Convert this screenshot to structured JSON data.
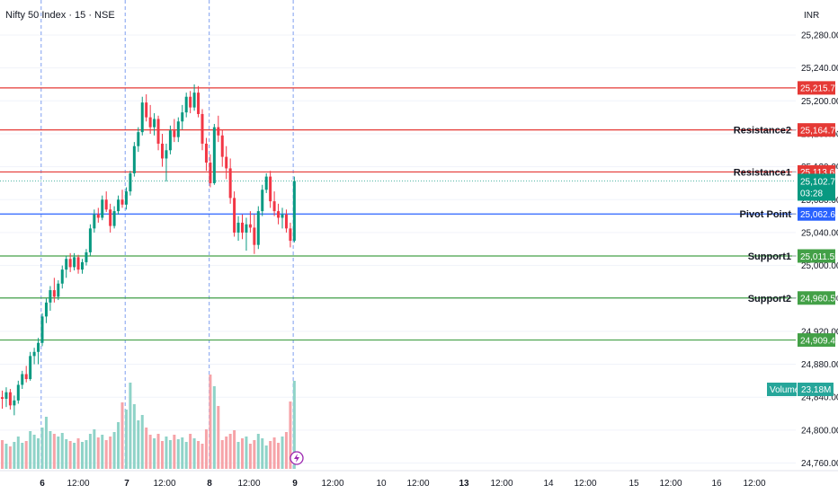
{
  "header": {
    "symbol_title": "Nifty 50 Index · 15 · NSE",
    "currency": "INR"
  },
  "price_axis": {
    "ticks": [
      25280,
      25240,
      25200,
      25160,
      25120,
      25080,
      25040,
      25000,
      24960,
      24920,
      24880,
      24840,
      24800,
      24760
    ]
  },
  "time_axis": {
    "ticks": [
      {
        "label": "6",
        "bold": true
      },
      {
        "label": "12:00",
        "bold": false
      },
      {
        "label": "7",
        "bold": true
      },
      {
        "label": "12:00",
        "bold": false
      },
      {
        "label": "8",
        "bold": true
      },
      {
        "label": "12:00",
        "bold": false
      },
      {
        "label": "9",
        "bold": true
      },
      {
        "label": "12:00",
        "bold": false
      },
      {
        "label": "10",
        "bold": false
      },
      {
        "label": "12:00",
        "bold": false
      },
      {
        "label": "13",
        "bold": true
      },
      {
        "label": "12:00",
        "bold": false
      },
      {
        "label": "14",
        "bold": false
      },
      {
        "label": "12:00",
        "bold": false
      },
      {
        "label": "15",
        "bold": false
      },
      {
        "label": "12:00",
        "bold": false
      },
      {
        "label": "16",
        "bold": false
      },
      {
        "label": "12:00",
        "bold": false
      }
    ]
  },
  "levels": [
    {
      "name": "",
      "value": 25215.75,
      "value_label": "25,215.75",
      "color": "#e53935"
    },
    {
      "name": "Resistance2",
      "value": 25164.7,
      "value_label": "25,164.70",
      "color": "#e53935"
    },
    {
      "name": "Resistance1",
      "value": 25113.65,
      "value_label": "25,113.65",
      "color": "#e53935"
    },
    {
      "name": "Pivot Point",
      "value": 25062.6,
      "value_label": "25,062.60",
      "color": "#2962ff"
    },
    {
      "name": "Support1",
      "value": 25011.55,
      "value_label": "25,011.55",
      "color": "#43a047"
    },
    {
      "name": "Support2",
      "value": 24960.5,
      "value_label": "24,960.50",
      "color": "#43a047"
    },
    {
      "name": "",
      "value": 24909.45,
      "value_label": "24,909.45",
      "color": "#43a047"
    }
  ],
  "last_price": {
    "value": 25102.7,
    "value_label": "25,102.70",
    "countdown": "03:28",
    "color": "#089981"
  },
  "volume": {
    "label": "Volume",
    "value": "23.18M",
    "color": "#26a69a"
  },
  "colors": {
    "up": "#089981",
    "down": "#f23645",
    "vol_up": "#8fd3c8",
    "vol_down": "#f6a3a8",
    "grid": "#f0f3fa",
    "session": "#7f9ff0"
  },
  "chart_data": {
    "type": "candlestick",
    "interval": "15",
    "ylim": [
      24750,
      25300
    ],
    "candles": [
      [
        24840,
        24848,
        24826,
        24838
      ],
      [
        24838,
        24852,
        24828,
        24846
      ],
      [
        24846,
        24850,
        24825,
        24830
      ],
      [
        24830,
        24842,
        24818,
        24836
      ],
      [
        24836,
        24860,
        24832,
        24855
      ],
      [
        24855,
        24872,
        24850,
        24868
      ],
      [
        24868,
        24878,
        24858,
        24862
      ],
      [
        24862,
        24895,
        24860,
        24890
      ],
      [
        24890,
        24900,
        24880,
        24895
      ],
      [
        24895,
        24912,
        24880,
        24906
      ],
      [
        24906,
        24942,
        24902,
        24938
      ],
      [
        24938,
        24960,
        24930,
        24955
      ],
      [
        24955,
        24975,
        24945,
        24970
      ],
      [
        24970,
        24985,
        24955,
        24962
      ],
      [
        24962,
        24982,
        24958,
        24978
      ],
      [
        24978,
        25000,
        24972,
        24995
      ],
      [
        24995,
        25012,
        24985,
        25008
      ],
      [
        25008,
        25015,
        24992,
        24998
      ],
      [
        24998,
        25015,
        24994,
        25010
      ],
      [
        25010,
        25013,
        24990,
        24995
      ],
      [
        24995,
        25008,
        24990,
        25004
      ],
      [
        25004,
        25020,
        25000,
        25016
      ],
      [
        25016,
        25050,
        25012,
        25045
      ],
      [
        25045,
        25068,
        25040,
        25062
      ],
      [
        25062,
        25070,
        25052,
        25058
      ],
      [
        25058,
        25085,
        25055,
        25080
      ],
      [
        25080,
        25090,
        25065,
        25068
      ],
      [
        25068,
        25075,
        25040,
        25048
      ],
      [
        25048,
        25072,
        25045,
        25066
      ],
      [
        25066,
        25085,
        25062,
        25080
      ],
      [
        25080,
        25092,
        25070,
        25074
      ],
      [
        25074,
        25095,
        25068,
        25090
      ],
      [
        25090,
        25115,
        25085,
        25112
      ],
      [
        25112,
        25150,
        25108,
        25145
      ],
      [
        25145,
        25168,
        25138,
        25162
      ],
      [
        25162,
        25205,
        25158,
        25198
      ],
      [
        25198,
        25208,
        25175,
        25180
      ],
      [
        25180,
        25195,
        25160,
        25168
      ],
      [
        25168,
        25185,
        25158,
        25178
      ],
      [
        25178,
        25182,
        25140,
        25148
      ],
      [
        25148,
        25160,
        25120,
        25130
      ],
      [
        25130,
        25148,
        25102,
        25140
      ],
      [
        25140,
        25170,
        25135,
        25164
      ],
      [
        25164,
        25178,
        25150,
        25156
      ],
      [
        25156,
        25180,
        25150,
        25175
      ],
      [
        25175,
        25195,
        25165,
        25186
      ],
      [
        25186,
        25210,
        25180,
        25205
      ],
      [
        25205,
        25212,
        25185,
        25192
      ],
      [
        25192,
        25220,
        25188,
        25210
      ],
      [
        25210,
        25218,
        25180,
        25184
      ],
      [
        25184,
        25190,
        25140,
        25148
      ],
      [
        25148,
        25155,
        25115,
        25125
      ],
      [
        25125,
        25135,
        25095,
        25100
      ],
      [
        25100,
        25172,
        25098,
        25168
      ],
      [
        25168,
        25182,
        25150,
        25158
      ],
      [
        25158,
        25165,
        25120,
        25132
      ],
      [
        25132,
        25145,
        25105,
        25118
      ],
      [
        25118,
        25130,
        25075,
        25082
      ],
      [
        25082,
        25090,
        25035,
        25040
      ],
      [
        25040,
        25060,
        25030,
        25052
      ],
      [
        25052,
        25062,
        25032,
        25040
      ],
      [
        25040,
        25058,
        25018,
        25050
      ],
      [
        25050,
        25066,
        25040,
        25046
      ],
      [
        25046,
        25062,
        25014,
        25025
      ],
      [
        25025,
        25072,
        25020,
        25066
      ],
      [
        25066,
        25098,
        25060,
        25092
      ],
      [
        25092,
        25112,
        25088,
        25108
      ],
      [
        25108,
        25115,
        25070,
        25078
      ],
      [
        25078,
        25090,
        25060,
        25066
      ],
      [
        25066,
        25075,
        25050,
        25058
      ],
      [
        25058,
        25070,
        25045,
        25062
      ],
      [
        25062,
        25068,
        25040,
        25045
      ],
      [
        25045,
        25052,
        25022,
        25030
      ],
      [
        25030,
        25108,
        25028,
        25102.7
      ]
    ],
    "volumes": [
      3.2,
      2.8,
      2.5,
      3.0,
      3.6,
      2.9,
      3.1,
      4.2,
      3.8,
      3.4,
      4.6,
      5.8,
      4.2,
      3.9,
      3.6,
      4.0,
      3.3,
      3.1,
      2.9,
      3.4,
      3.0,
      3.2,
      3.9,
      4.4,
      3.5,
      3.8,
      3.2,
      3.6,
      4.1,
      5.2,
      7.4,
      6.6,
      9.6,
      7.2,
      5.4,
      6.0,
      4.6,
      3.8,
      3.4,
      3.9,
      3.1,
      3.6,
      3.2,
      3.8,
      3.3,
      3.5,
      3.0,
      3.9,
      3.4,
      3.1,
      2.8,
      4.4,
      10.5,
      9.2,
      7.0,
      3.2,
      3.6,
      3.9,
      4.3,
      3.0,
      3.4,
      3.6,
      2.8,
      3.2,
      3.9,
      3.4,
      2.6,
      3.1,
      3.5,
      2.9,
      3.6,
      4.1,
      7.5,
      9.8
    ]
  }
}
